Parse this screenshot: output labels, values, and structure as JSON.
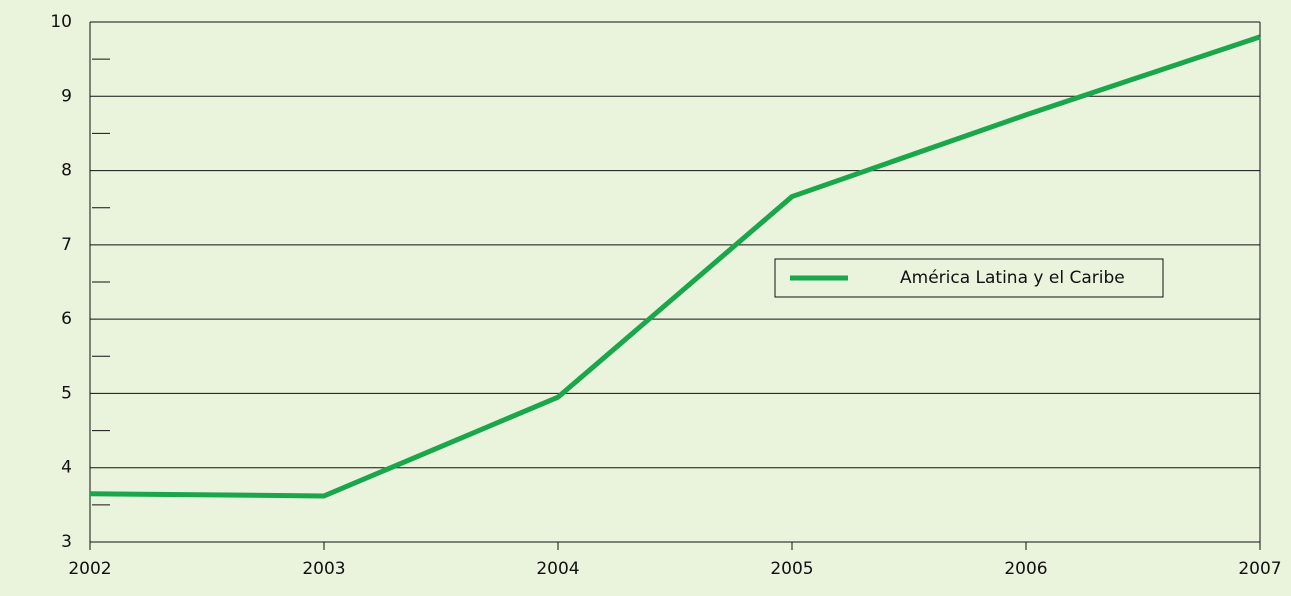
{
  "chart_data": {
    "type": "line",
    "x": [
      2002,
      2003,
      2004,
      2005,
      2006,
      2007
    ],
    "series": [
      {
        "name": "América Latina y el Caribe",
        "color": "#1aa64a",
        "values": [
          3.65,
          3.62,
          4.95,
          7.65,
          8.75,
          9.8
        ]
      }
    ],
    "xlim": [
      2002,
      2007
    ],
    "xticks": [
      2002,
      2003,
      2004,
      2005,
      2006,
      2007
    ],
    "ylim": [
      3,
      10
    ],
    "yticks": [
      3,
      4,
      5,
      6,
      7,
      8,
      9,
      10
    ],
    "minor_yticks": [
      3.5,
      4.5,
      5.5,
      6.5,
      7.5,
      8.5,
      9.5
    ],
    "grid": true,
    "legend": "center right"
  }
}
